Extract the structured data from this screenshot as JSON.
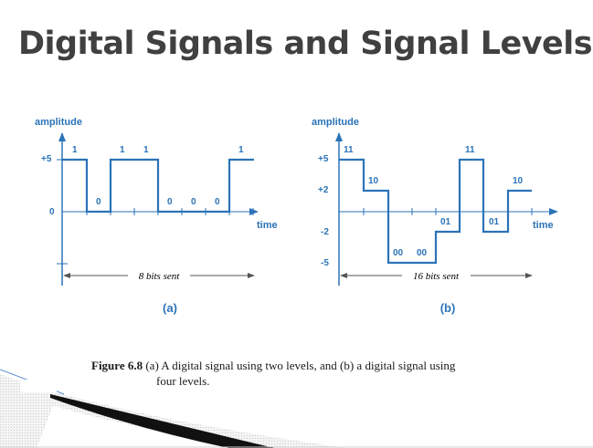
{
  "slide": {
    "title": "Digital Signals and Signal Levels"
  },
  "figure": {
    "caption_lead": "Figure 6.8",
    "caption_line1": "(a) A digital signal using two levels, and (b) a digital signal using",
    "caption_line2": "four levels."
  },
  "diagram_a": {
    "y_axis_label": "amplitude",
    "x_axis_label": "time",
    "level_labels": [
      "+5",
      "0"
    ],
    "bit_values": [
      "1",
      "0",
      "1",
      "1",
      "0",
      "0",
      "0",
      "1"
    ],
    "span_caption": "8 bits sent",
    "panel_label": "(a)"
  },
  "diagram_b": {
    "y_axis_label": "amplitude",
    "x_axis_label": "time",
    "level_labels": [
      "+5",
      "+2",
      "-2",
      "-5"
    ],
    "symbol_values": [
      "11",
      "10",
      "00",
      "00",
      "01",
      "11",
      "01",
      "10"
    ],
    "span_caption": "16 bits sent",
    "panel_label": "(b)"
  },
  "colors": {
    "title": "#404040",
    "signal": "#2b73b7",
    "axis": "#2b73b7",
    "arrow": "#555555"
  }
}
